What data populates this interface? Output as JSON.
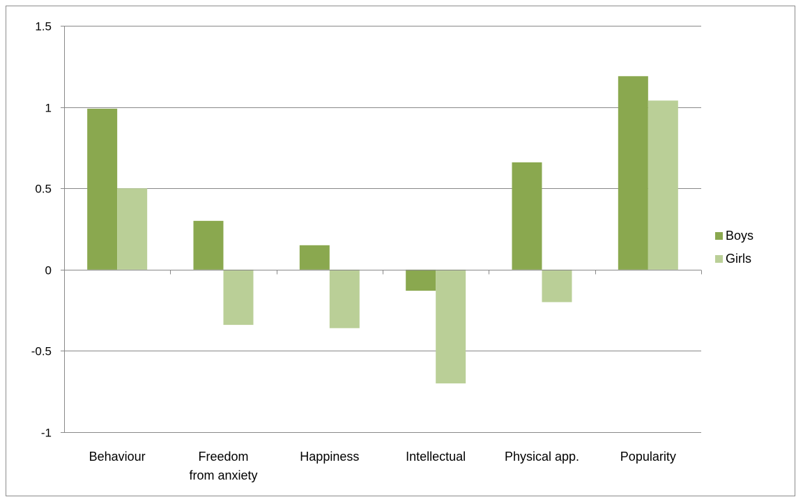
{
  "chart_data": {
    "type": "bar",
    "title": "",
    "xlabel": "",
    "ylabel": "",
    "categories": [
      "Behaviour",
      "Freedom from anxiety",
      "Happiness",
      "Intellectual",
      "Physical app.",
      "Popularity"
    ],
    "category_labels": [
      [
        "Behaviour"
      ],
      [
        "Freedom",
        "from anxiety"
      ],
      [
        "Happiness"
      ],
      [
        "Intellectual"
      ],
      [
        "Physical app."
      ],
      [
        "Popularity"
      ]
    ],
    "series": [
      {
        "name": "Boys",
        "color": "#8aa84f",
        "values": [
          0.99,
          0.3,
          0.15,
          -0.13,
          0.66,
          1.19
        ]
      },
      {
        "name": "Girls",
        "color": "#bacf97",
        "values": [
          0.5,
          -0.34,
          -0.36,
          -0.7,
          -0.2,
          1.04
        ]
      }
    ],
    "ylim": [
      -1,
      1.5
    ],
    "yticks": [
      {
        "value": -1,
        "label": "-1"
      },
      {
        "value": -0.5,
        "label": "-0.5"
      },
      {
        "value": 0,
        "label": "0"
      },
      {
        "value": 0.5,
        "label": "0.5"
      },
      {
        "value": 1,
        "label": "1"
      },
      {
        "value": 1.5,
        "label": "1.5"
      }
    ],
    "grid": true,
    "legend_position": "right"
  }
}
